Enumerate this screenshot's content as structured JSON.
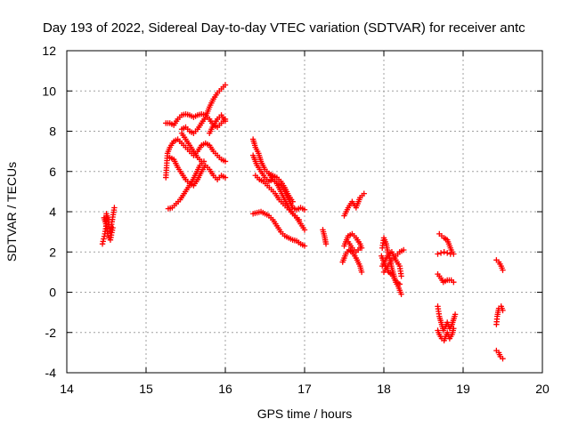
{
  "chart_data": {
    "type": "scatter",
    "title": "Day 193 of 2022, Sidereal Day-to-day VTEC variation (SDTVAR) for receiver antc",
    "xlabel": "GPS time / hours",
    "ylabel": "SDTVAR / TECUs",
    "xlim": [
      14,
      20
    ],
    "ylim": [
      -4,
      12
    ],
    "xticks": [
      "14",
      "15",
      "16",
      "17",
      "18",
      "19",
      "20"
    ],
    "yticks": [
      "-4",
      "-2",
      "0",
      "2",
      "4",
      "6",
      "8",
      "10",
      "12"
    ],
    "grid": true,
    "marker": "plus",
    "color": "#ff0000",
    "tracks": [
      {
        "name": "t1",
        "points": [
          [
            14.45,
            2.4
          ],
          [
            14.48,
            2.9
          ],
          [
            14.5,
            3.4
          ],
          [
            14.5,
            3.9
          ],
          [
            14.52,
            3.6
          ],
          [
            14.55,
            3.0
          ],
          [
            14.57,
            3.5
          ],
          [
            14.6,
            4.2
          ]
        ]
      },
      {
        "name": "t2",
        "points": [
          [
            14.47,
            3.7
          ],
          [
            14.5,
            3.3
          ],
          [
            14.52,
            2.8
          ],
          [
            14.55,
            2.6
          ],
          [
            14.58,
            3.2
          ]
        ]
      },
      {
        "name": "t3",
        "points": [
          [
            15.25,
            5.7
          ],
          [
            15.27,
            6.9
          ],
          [
            15.3,
            7.2
          ],
          [
            15.35,
            7.5
          ],
          [
            15.4,
            7.6
          ],
          [
            15.45,
            7.4
          ],
          [
            15.5,
            7.2
          ],
          [
            15.55,
            7.0
          ],
          [
            15.6,
            6.8
          ],
          [
            15.65,
            7.0
          ],
          [
            15.7,
            7.3
          ],
          [
            15.75,
            7.4
          ],
          [
            15.8,
            7.3
          ],
          [
            15.85,
            7.0
          ],
          [
            15.9,
            6.8
          ],
          [
            15.95,
            6.6
          ],
          [
            16.0,
            6.5
          ]
        ]
      },
      {
        "name": "t4",
        "points": [
          [
            15.25,
            8.4
          ],
          [
            15.3,
            8.4
          ],
          [
            15.35,
            8.3
          ],
          [
            15.4,
            8.6
          ],
          [
            15.45,
            8.8
          ],
          [
            15.5,
            8.85
          ],
          [
            15.55,
            8.8
          ],
          [
            15.6,
            8.7
          ],
          [
            15.65,
            8.8
          ],
          [
            15.7,
            8.85
          ],
          [
            15.75,
            8.8
          ],
          [
            15.8,
            8.6
          ],
          [
            15.85,
            8.3
          ],
          [
            15.9,
            8.2
          ],
          [
            15.95,
            8.4
          ],
          [
            16.0,
            8.6
          ]
        ]
      },
      {
        "name": "t5",
        "points": [
          [
            15.45,
            8.1
          ],
          [
            15.5,
            8.2
          ],
          [
            15.55,
            8.0
          ],
          [
            15.6,
            7.9
          ],
          [
            15.65,
            8.1
          ],
          [
            15.7,
            8.4
          ],
          [
            15.75,
            8.7
          ],
          [
            15.8,
            9.2
          ],
          [
            15.85,
            9.6
          ],
          [
            15.9,
            9.9
          ],
          [
            15.95,
            10.1
          ],
          [
            16.0,
            10.3
          ]
        ]
      },
      {
        "name": "t6",
        "points": [
          [
            15.3,
            6.7
          ],
          [
            15.35,
            6.6
          ],
          [
            15.4,
            6.2
          ],
          [
            15.45,
            5.9
          ],
          [
            15.5,
            5.6
          ],
          [
            15.55,
            5.4
          ],
          [
            15.6,
            5.3
          ],
          [
            15.65,
            5.6
          ],
          [
            15.7,
            6.0
          ],
          [
            15.75,
            6.3
          ],
          [
            15.8,
            6.1
          ],
          [
            15.85,
            5.8
          ],
          [
            15.9,
            5.6
          ],
          [
            15.95,
            5.8
          ],
          [
            16.0,
            5.7
          ]
        ]
      },
      {
        "name": "t7",
        "points": [
          [
            15.28,
            4.15
          ],
          [
            15.33,
            4.2
          ],
          [
            15.38,
            4.4
          ],
          [
            15.43,
            4.6
          ],
          [
            15.48,
            4.9
          ],
          [
            15.53,
            5.2
          ],
          [
            15.58,
            5.5
          ],
          [
            15.63,
            5.9
          ],
          [
            15.68,
            6.3
          ],
          [
            15.73,
            6.5
          ]
        ]
      },
      {
        "name": "t8",
        "points": [
          [
            15.45,
            7.9
          ],
          [
            15.5,
            7.6
          ],
          [
            15.55,
            7.3
          ],
          [
            15.6,
            7.0
          ],
          [
            15.65,
            6.7
          ],
          [
            15.7,
            6.5
          ]
        ]
      },
      {
        "name": "t9",
        "points": [
          [
            15.8,
            7.9
          ],
          [
            15.85,
            8.3
          ],
          [
            15.9,
            8.6
          ],
          [
            15.95,
            8.8
          ],
          [
            16.0,
            8.5
          ]
        ]
      },
      {
        "name": "t10",
        "points": [
          [
            16.35,
            7.6
          ],
          [
            16.38,
            7.2
          ],
          [
            16.42,
            6.9
          ],
          [
            16.45,
            6.5
          ],
          [
            16.5,
            6.1
          ],
          [
            16.55,
            5.9
          ],
          [
            16.6,
            5.6
          ],
          [
            16.65,
            5.4
          ],
          [
            16.7,
            5.3
          ],
          [
            16.75,
            5.0
          ],
          [
            16.8,
            4.6
          ],
          [
            16.85,
            4.2
          ],
          [
            16.9,
            4.1
          ],
          [
            16.95,
            4.2
          ],
          [
            17.0,
            4.1
          ]
        ]
      },
      {
        "name": "t11",
        "points": [
          [
            16.35,
            6.8
          ],
          [
            16.4,
            6.3
          ],
          [
            16.45,
            6.0
          ],
          [
            16.5,
            5.7
          ],
          [
            16.55,
            5.5
          ],
          [
            16.6,
            5.6
          ],
          [
            16.65,
            5.4
          ],
          [
            16.7,
            5.0
          ],
          [
            16.75,
            4.6
          ],
          [
            16.8,
            4.2
          ],
          [
            16.85,
            3.9
          ],
          [
            16.9,
            3.7
          ],
          [
            16.95,
            3.4
          ],
          [
            17.0,
            3.1
          ]
        ]
      },
      {
        "name": "t12",
        "points": [
          [
            16.35,
            3.9
          ],
          [
            16.4,
            3.95
          ],
          [
            16.45,
            4.0
          ],
          [
            16.5,
            3.9
          ],
          [
            16.55,
            3.8
          ],
          [
            16.6,
            3.6
          ],
          [
            16.65,
            3.3
          ],
          [
            16.7,
            3.0
          ],
          [
            16.75,
            2.8
          ],
          [
            16.8,
            2.7
          ],
          [
            16.85,
            2.6
          ],
          [
            16.9,
            2.55
          ],
          [
            16.95,
            2.4
          ],
          [
            17.0,
            2.3
          ]
        ]
      },
      {
        "name": "t13",
        "points": [
          [
            16.38,
            5.8
          ],
          [
            16.43,
            5.6
          ],
          [
            16.48,
            5.5
          ],
          [
            16.53,
            5.3
          ],
          [
            16.58,
            5.1
          ],
          [
            16.63,
            4.9
          ],
          [
            16.68,
            4.6
          ],
          [
            16.73,
            4.4
          ],
          [
            16.78,
            4.2
          ],
          [
            16.83,
            4.0
          ],
          [
            16.88,
            3.8
          ],
          [
            16.93,
            3.6
          ]
        ]
      },
      {
        "name": "t14",
        "points": [
          [
            16.55,
            5.9
          ],
          [
            16.6,
            5.8
          ],
          [
            16.65,
            5.7
          ],
          [
            16.7,
            5.5
          ],
          [
            16.75,
            5.2
          ],
          [
            16.8,
            4.8
          ],
          [
            16.85,
            4.5
          ]
        ]
      },
      {
        "name": "t15",
        "points": [
          [
            17.23,
            3.1
          ],
          [
            17.25,
            2.8
          ],
          [
            17.27,
            2.4
          ]
        ]
      },
      {
        "name": "t16",
        "points": [
          [
            17.5,
            2.3
          ],
          [
            17.53,
            2.6
          ],
          [
            17.55,
            2.8
          ],
          [
            17.6,
            2.9
          ],
          [
            17.65,
            2.7
          ],
          [
            17.7,
            2.4
          ],
          [
            17.72,
            2.2
          ]
        ]
      },
      {
        "name": "t17",
        "points": [
          [
            17.48,
            1.5
          ],
          [
            17.52,
            1.9
          ],
          [
            17.56,
            2.1
          ],
          [
            17.6,
            2.0
          ],
          [
            17.65,
            1.7
          ],
          [
            17.7,
            1.3
          ],
          [
            17.72,
            1.0
          ]
        ]
      },
      {
        "name": "t18",
        "points": [
          [
            17.5,
            3.8
          ],
          [
            17.55,
            4.2
          ],
          [
            17.6,
            4.5
          ],
          [
            17.65,
            4.2
          ],
          [
            17.7,
            4.7
          ],
          [
            17.75,
            4.9
          ]
        ]
      },
      {
        "name": "t19",
        "points": [
          [
            17.55,
            2.5
          ],
          [
            17.6,
            2.2
          ],
          [
            17.65,
            2.0
          ],
          [
            17.7,
            2.2
          ]
        ]
      },
      {
        "name": "t20",
        "points": [
          [
            17.98,
            2.2
          ],
          [
            18.0,
            2.7
          ],
          [
            18.03,
            2.4
          ],
          [
            18.05,
            2.0
          ],
          [
            18.08,
            1.6
          ],
          [
            18.1,
            1.2
          ],
          [
            18.13,
            0.8
          ],
          [
            18.15,
            0.5
          ],
          [
            18.18,
            0.3
          ],
          [
            18.2,
            0.1
          ],
          [
            18.22,
            -0.1
          ]
        ]
      },
      {
        "name": "t21",
        "points": [
          [
            17.97,
            1.8
          ],
          [
            18.0,
            1.5
          ],
          [
            18.03,
            1.2
          ],
          [
            18.06,
            1.0
          ],
          [
            18.1,
            0.9
          ],
          [
            18.13,
            0.7
          ],
          [
            18.16,
            0.5
          ],
          [
            18.2,
            0.4
          ]
        ]
      },
      {
        "name": "t22",
        "points": [
          [
            18.0,
            1.0
          ],
          [
            18.05,
            1.3
          ],
          [
            18.1,
            1.6
          ],
          [
            18.15,
            1.8
          ],
          [
            18.2,
            2.0
          ],
          [
            18.25,
            2.1
          ]
        ]
      },
      {
        "name": "t23",
        "points": [
          [
            17.98,
            1.3
          ],
          [
            18.02,
            1.6
          ],
          [
            18.06,
            1.9
          ],
          [
            18.1,
            2.0
          ],
          [
            18.15,
            1.6
          ],
          [
            18.2,
            1.3
          ],
          [
            18.22,
            0.8
          ]
        ]
      },
      {
        "name": "t24",
        "points": [
          [
            18.7,
            2.9
          ],
          [
            18.73,
            2.8
          ],
          [
            18.76,
            2.7
          ],
          [
            18.8,
            2.6
          ],
          [
            18.83,
            2.3
          ],
          [
            18.86,
            2.0
          ]
        ]
      },
      {
        "name": "t25",
        "points": [
          [
            18.68,
            1.9
          ],
          [
            18.72,
            1.95
          ],
          [
            18.76,
            2.0
          ],
          [
            18.8,
            1.95
          ],
          [
            18.84,
            1.9
          ],
          [
            18.88,
            1.9
          ]
        ]
      },
      {
        "name": "t26",
        "points": [
          [
            18.68,
            0.9
          ],
          [
            18.72,
            0.7
          ],
          [
            18.75,
            0.5
          ],
          [
            18.8,
            0.6
          ],
          [
            18.85,
            0.6
          ],
          [
            18.88,
            0.5
          ]
        ]
      },
      {
        "name": "t27",
        "points": [
          [
            18.68,
            -0.7
          ],
          [
            18.7,
            -1.2
          ],
          [
            18.73,
            -1.6
          ],
          [
            18.75,
            -1.9
          ],
          [
            18.78,
            -1.7
          ],
          [
            18.8,
            -1.5
          ],
          [
            18.83,
            -1.8
          ],
          [
            18.86,
            -1.6
          ],
          [
            18.9,
            -1.1
          ]
        ]
      },
      {
        "name": "t28",
        "points": [
          [
            18.68,
            -1.9
          ],
          [
            18.7,
            -2.1
          ],
          [
            18.73,
            -2.3
          ],
          [
            18.76,
            -2.4
          ],
          [
            18.78,
            -2.2
          ],
          [
            18.8,
            -2.0
          ],
          [
            18.83,
            -2.3
          ],
          [
            18.86,
            -2.1
          ],
          [
            18.88,
            -1.8
          ]
        ]
      },
      {
        "name": "t29",
        "points": [
          [
            19.42,
            1.6
          ],
          [
            19.45,
            1.5
          ],
          [
            19.48,
            1.3
          ],
          [
            19.5,
            1.1
          ]
        ]
      },
      {
        "name": "t30",
        "points": [
          [
            19.42,
            -1.6
          ],
          [
            19.43,
            -1.2
          ],
          [
            19.45,
            -0.8
          ],
          [
            19.48,
            -0.7
          ],
          [
            19.5,
            -0.9
          ]
        ]
      },
      {
        "name": "t31",
        "points": [
          [
            19.42,
            -2.9
          ],
          [
            19.45,
            -3.0
          ],
          [
            19.47,
            -3.2
          ],
          [
            19.5,
            -3.3
          ]
        ]
      }
    ]
  }
}
